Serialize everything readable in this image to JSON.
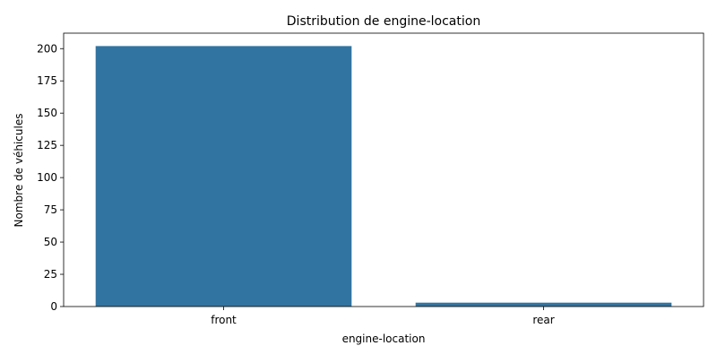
{
  "chart_data": {
    "type": "bar",
    "title": "Distribution de engine-location",
    "xlabel": "engine-location",
    "ylabel": "Nombre de véhicules",
    "categories": [
      "front",
      "rear"
    ],
    "values": [
      202,
      3
    ],
    "ylim": [
      0,
      212
    ],
    "yticks": [
      "0",
      "25",
      "50",
      "75",
      "100",
      "125",
      "150",
      "175",
      "200"
    ],
    "bar_color": "#3274a1",
    "grid": false,
    "legend": "none"
  }
}
